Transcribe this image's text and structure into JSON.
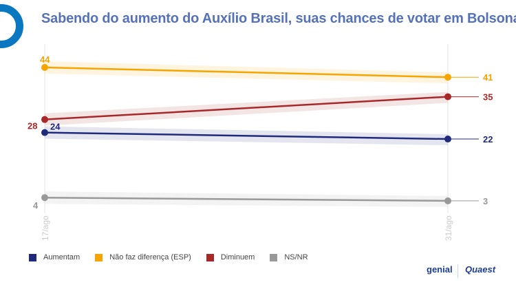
{
  "title": "Sabendo do aumento do Auxílio Brasil, suas chances de votar em Bolsonaro",
  "chart_data": {
    "type": "line",
    "title": "Sabendo do aumento do Auxílio Brasil, suas chances de votar em Bolsonaro",
    "categories": [
      "17/ago",
      "31/ago"
    ],
    "series": [
      {
        "name": "Aumentam",
        "values": [
          24,
          22
        ],
        "color": "#1f2a7c"
      },
      {
        "name": "Não faz diferença (ESP)",
        "values": [
          44,
          41
        ],
        "color": "#f5a400"
      },
      {
        "name": "Diminuem",
        "values": [
          28,
          35
        ],
        "color": "#a8282a"
      },
      {
        "name": "NS/NR",
        "values": [
          4,
          3
        ],
        "color": "#999999"
      }
    ],
    "ylim": [
      3,
      44
    ],
    "legend_position": "bottom-left",
    "grid": false
  },
  "brands": {
    "left": "genial",
    "right": "Quaest"
  }
}
